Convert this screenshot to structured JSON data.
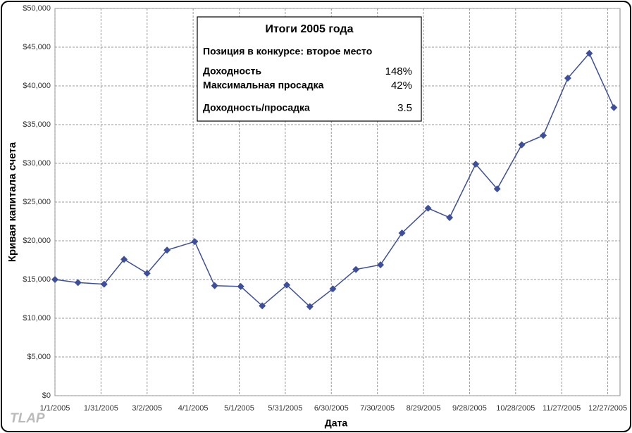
{
  "chart_data": {
    "type": "line",
    "info_box": {
      "title": "Итоги 2005 года",
      "rows": [
        {
          "label": "Позиция в конкурсе: второе место"
        },
        {
          "label": "Доходность",
          "value": "148%"
        },
        {
          "label": "Максимальная просадка",
          "value": "42%"
        },
        {
          "label": "Доходность/просадка",
          "value": "3.5"
        }
      ]
    },
    "y_label": "Кривая капитала счета",
    "x_label": "Дата",
    "watermark": "TLAP",
    "x": [
      "2005-01-01",
      "2005-01-16",
      "2005-02-02",
      "2005-02-15",
      "2005-03-02",
      "2005-03-15",
      "2005-04-02",
      "2005-04-15",
      "2005-05-02",
      "2005-05-16",
      "2005-06-01",
      "2005-06-16",
      "2005-07-01",
      "2005-07-16",
      "2005-08-01",
      "2005-08-15",
      "2005-09-01",
      "2005-09-15",
      "2005-10-02",
      "2005-10-16",
      "2005-11-01",
      "2005-11-15",
      "2005-12-01",
      "2005-12-15",
      "2005-12-31"
    ],
    "series": [
      {
        "color": "#3d4f9c",
        "values": [
          15000,
          14600,
          14400,
          17600,
          15800,
          18800,
          19900,
          14200,
          14100,
          11600,
          14300,
          11500,
          13800,
          16300,
          16900,
          21000,
          24200,
          23000,
          29900,
          26700,
          32400,
          33600,
          41000,
          44200,
          37200
        ]
      }
    ],
    "xlim": [
      "2005-01-01",
      "2006-01-04"
    ],
    "xticks": [
      {
        "value": "2005-01-01",
        "label": "1/1/2005"
      },
      {
        "value": "2005-01-31",
        "label": "1/31/2005"
      },
      {
        "value": "2005-03-02",
        "label": "3/2/2005"
      },
      {
        "value": "2005-04-01",
        "label": "4/1/2005"
      },
      {
        "value": "2005-05-01",
        "label": "5/1/2005"
      },
      {
        "value": "2005-05-31",
        "label": "5/31/2005"
      },
      {
        "value": "2005-06-30",
        "label": "6/30/2005"
      },
      {
        "value": "2005-07-30",
        "label": "7/30/2005"
      },
      {
        "value": "2005-08-29",
        "label": "8/29/2005"
      },
      {
        "value": "2005-09-28",
        "label": "9/28/2005"
      },
      {
        "value": "2005-10-28",
        "label": "10/28/2005"
      },
      {
        "value": "2005-11-27",
        "label": "11/27/2005"
      },
      {
        "value": "2005-12-27",
        "label": "12/27/2005"
      }
    ],
    "ylim": [
      0,
      50000
    ],
    "yticks": [
      {
        "value": 0,
        "label": "$0"
      },
      {
        "value": 5000,
        "label": "$5,000"
      },
      {
        "value": 10000,
        "label": "$10,000"
      },
      {
        "value": 15000,
        "label": "$15,000"
      },
      {
        "value": 20000,
        "label": "$20,000"
      },
      {
        "value": 25000,
        "label": "$25,000"
      },
      {
        "value": 30000,
        "label": "$30,000"
      },
      {
        "value": 35000,
        "label": "$35,000"
      },
      {
        "value": 40000,
        "label": "$40,000"
      },
      {
        "value": 45000,
        "label": "$45,000"
      },
      {
        "value": 50000,
        "label": "$50,000"
      }
    ],
    "grid": true
  }
}
